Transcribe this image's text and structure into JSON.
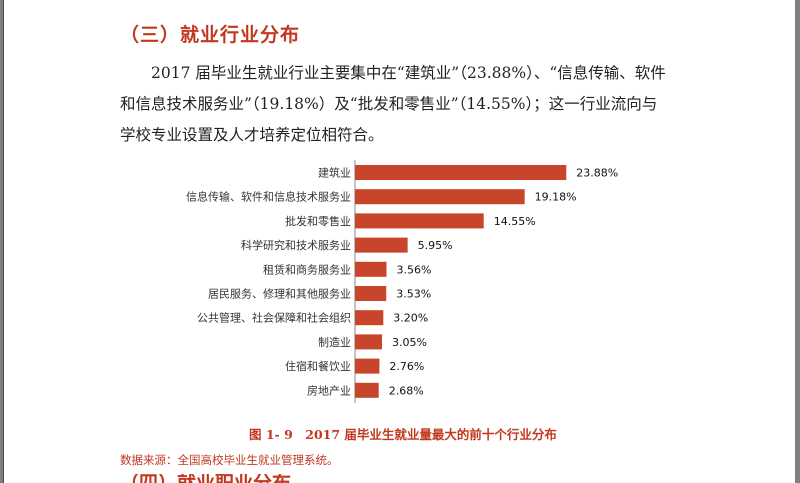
{
  "section": {
    "heading": "（三）就业行业分布",
    "paragraph_lines": [
      "2017 届毕业生就业行业主要集中在“建筑业”（23.88%）、“信息传输、软件",
      "和信息技术服务业”（19.18%）及“批发和零售业”（14.55%）；这一行业流向与",
      "学校专业设置及人才培养定位相符合。"
    ],
    "next_heading_partial": "（四）就业职业分布"
  },
  "figure": {
    "caption": "图 1- 9　2017 届毕业生就业量最大的前十个行业分布",
    "source": "数据来源：全国高校毕业生就业管理系统。"
  },
  "chart_data": {
    "type": "bar",
    "orientation": "horizontal",
    "categories": [
      "建筑业",
      "信息传输、软件和信息技术服务业",
      "批发和零售业",
      "科学研究和技术服务业",
      "租赁和商务服务业",
      "居民服务、修理和其他服务业",
      "公共管理、社会保障和社会组织",
      "制造业",
      "住宿和餐饮业",
      "房地产业"
    ],
    "values": [
      23.88,
      19.18,
      14.55,
      5.95,
      3.56,
      3.53,
      3.2,
      3.05,
      2.76,
      2.68
    ],
    "value_labels": [
      "23.88%",
      "19.18%",
      "14.55%",
      "5.95%",
      "3.56%",
      "3.53%",
      "3.20%",
      "3.05%",
      "2.76%",
      "2.68%"
    ],
    "xlim": [
      0,
      26
    ],
    "bar_color": "#c8442b",
    "grid": false,
    "legend": "none"
  }
}
